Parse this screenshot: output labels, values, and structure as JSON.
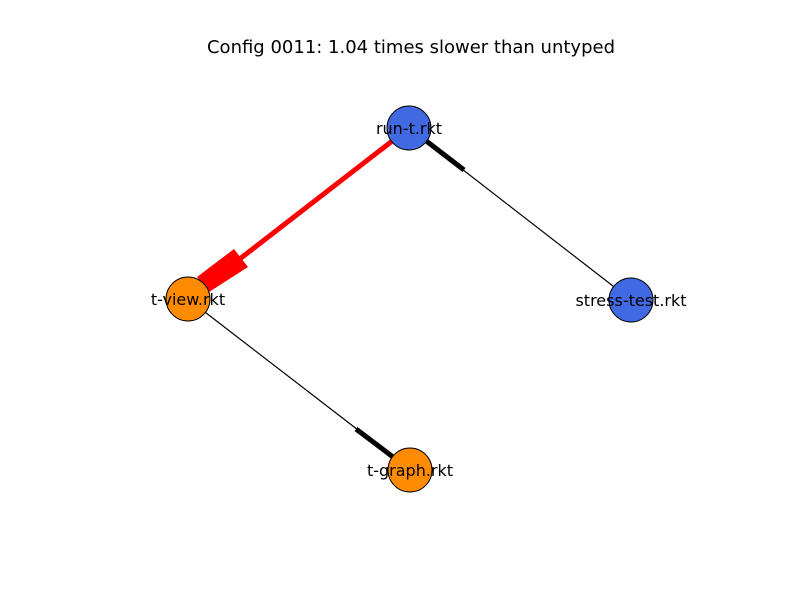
{
  "title": "Config 0011: 1.04 times slower than untyped",
  "colors": {
    "typed_node": "#ff8c00",
    "untyped_node": "#4169e1",
    "boundary_edge": "#ff0000",
    "normal_edge": "#000000"
  },
  "nodes": [
    {
      "id": "run",
      "label": "run-t.rkt",
      "typed": false
    },
    {
      "id": "stress",
      "label": "stress-test.rkt",
      "typed": false
    },
    {
      "id": "view",
      "label": "t-view.rkt",
      "typed": true
    },
    {
      "id": "graph",
      "label": "t-graph.rkt",
      "typed": true
    }
  ],
  "edges": [
    {
      "from": "run",
      "to": "view",
      "boundary": true
    },
    {
      "from": "stress",
      "to": "run",
      "boundary": false
    },
    {
      "from": "view",
      "to": "graph",
      "boundary": false
    }
  ]
}
